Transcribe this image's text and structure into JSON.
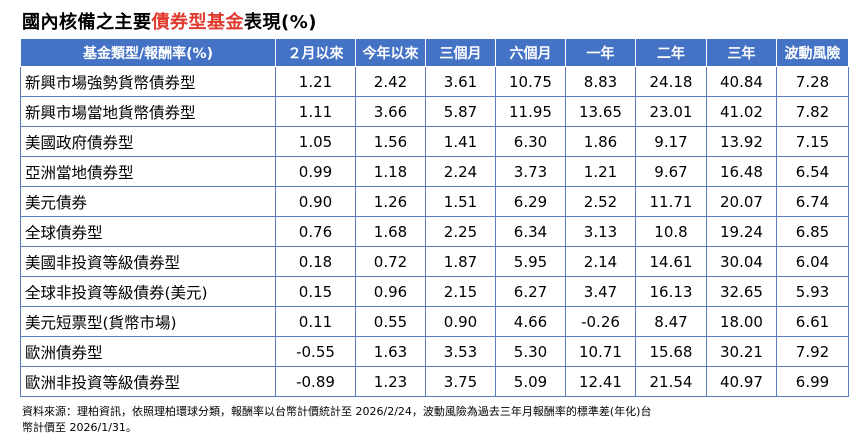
{
  "title_prefix": "國內核備之主要",
  "title_highlight": "債券型基金",
  "title_suffix": "表現(%)",
  "headers": [
    "基金類型/報酬率(%)",
    "２月以來",
    "今年以來",
    "三個月",
    "六個月",
    "一年",
    "二年",
    "三年",
    "波動風險"
  ],
  "rows": [
    [
      "新興市場強勢貨幣債券型",
      "1.21",
      "2.42",
      "3.61",
      "10.75",
      "8.83",
      "24.18",
      "40.84",
      "7.28"
    ],
    [
      "新興市場當地貨幣債券型",
      "1.11",
      "3.66",
      "5.87",
      "11.95",
      "13.65",
      "23.01",
      "41.02",
      "7.82"
    ],
    [
      "美國政府債券型",
      "1.05",
      "1.56",
      "1.41",
      "6.30",
      "1.86",
      "9.17",
      "13.92",
      "7.15"
    ],
    [
      "亞洲當地債券型",
      "0.99",
      "1.18",
      "2.24",
      "3.73",
      "1.21",
      "9.67",
      "16.48",
      "6.54"
    ],
    [
      "美元債券",
      "0.90",
      "1.26",
      "1.51",
      "6.29",
      "2.52",
      "11.71",
      "20.07",
      "6.74"
    ],
    [
      "全球債券型",
      "0.76",
      "1.68",
      "2.25",
      "6.34",
      "3.13",
      "10.8",
      "19.24",
      "6.85"
    ],
    [
      "美國非投資等級債券型",
      "0.18",
      "0.72",
      "1.87",
      "5.95",
      "2.14",
      "14.61",
      "30.04",
      "6.04"
    ],
    [
      "全球非投資等級債券(美元)",
      "0.15",
      "0.96",
      "2.15",
      "6.27",
      "3.47",
      "16.13",
      "32.65",
      "5.93"
    ],
    [
      "美元短票型(貨幣市場)",
      "0.11",
      "0.55",
      "0.90",
      "4.66",
      "-0.26",
      "8.47",
      "18.00",
      "6.61"
    ],
    [
      "歐洲債券型",
      "-0.55",
      "1.63",
      "3.53",
      "5.30",
      "10.71",
      "15.68",
      "30.21",
      "7.92"
    ],
    [
      "歐洲非投資等級債券型",
      "-0.89",
      "1.23",
      "3.75",
      "5.09",
      "12.41",
      "21.54",
      "40.97",
      "6.99"
    ]
  ],
  "note_line1": "資料來源：理柏資訊，依照理柏環球分類，報酬率以台幣計價統計至 2026/2/24，波動風險為過去三年月報酬率的標準差(年化)台",
  "note_line2": "幣計價至 2026/1/31。",
  "colors": {
    "header_bg": "#4472c4",
    "highlight": "#e03a2e",
    "border": "#5b7dbb"
  }
}
